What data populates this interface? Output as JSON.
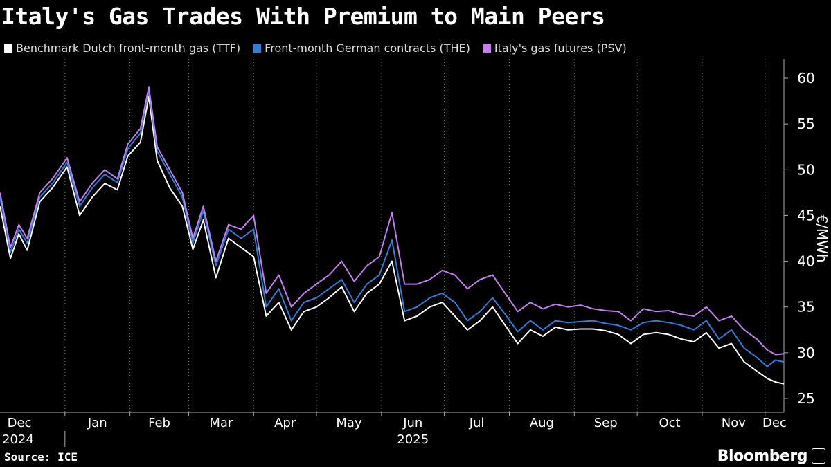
{
  "header": {
    "title": "Italy's Gas Trades With Premium to Main Peers"
  },
  "footer": {
    "source": "Source: ICE",
    "brand": "Bloomberg"
  },
  "chart_data": {
    "type": "line",
    "title": "Italy's Gas Trades With Premium to Main Peers",
    "ylabel": "€/MWh",
    "ylim": [
      25,
      60
    ],
    "yticks": [
      "25",
      "30",
      "35",
      "40",
      "45",
      "50",
      "55",
      "60"
    ],
    "xlim": [
      "2024-12-01",
      "2025-12-10"
    ],
    "month_ticks": [
      {
        "date": "2024-12-01",
        "label": "Dec",
        "year": "2024"
      },
      {
        "date": "2025-01-01",
        "label": "Jan"
      },
      {
        "date": "2025-02-01",
        "label": "Feb"
      },
      {
        "date": "2025-03-01",
        "label": "Mar"
      },
      {
        "date": "2025-04-01",
        "label": "Apr"
      },
      {
        "date": "2025-05-01",
        "label": "May"
      },
      {
        "date": "2025-06-01",
        "label": "Jun",
        "year": "2025"
      },
      {
        "date": "2025-07-01",
        "label": "Jul"
      },
      {
        "date": "2025-08-01",
        "label": "Aug"
      },
      {
        "date": "2025-09-01",
        "label": "Sep"
      },
      {
        "date": "2025-10-01",
        "label": "Oct"
      },
      {
        "date": "2025-11-01",
        "label": "Nov"
      },
      {
        "date": "2025-12-01",
        "label": "Dec"
      }
    ],
    "legend_position": "top-left",
    "grid": "vertical dotted",
    "x": [
      "2024-12-01",
      "2024-12-06",
      "2024-12-10",
      "2024-12-14",
      "2024-12-20",
      "2024-12-26",
      "2025-01-02",
      "2025-01-08",
      "2025-01-14",
      "2025-01-20",
      "2025-01-26",
      "2025-01-31",
      "2025-02-06",
      "2025-02-10",
      "2025-02-14",
      "2025-02-20",
      "2025-02-26",
      "2025-03-03",
      "2025-03-08",
      "2025-03-14",
      "2025-03-20",
      "2025-03-26",
      "2025-04-01",
      "2025-04-07",
      "2025-04-13",
      "2025-04-19",
      "2025-04-25",
      "2025-05-01",
      "2025-05-07",
      "2025-05-13",
      "2025-05-19",
      "2025-05-25",
      "2025-05-31",
      "2025-06-06",
      "2025-06-12",
      "2025-06-18",
      "2025-06-24",
      "2025-06-30",
      "2025-07-06",
      "2025-07-12",
      "2025-07-18",
      "2025-07-24",
      "2025-07-30",
      "2025-08-05",
      "2025-08-11",
      "2025-08-17",
      "2025-08-23",
      "2025-08-29",
      "2025-09-04",
      "2025-09-10",
      "2025-09-16",
      "2025-09-22",
      "2025-09-28",
      "2025-10-04",
      "2025-10-10",
      "2025-10-16",
      "2025-10-22",
      "2025-10-28",
      "2025-11-03",
      "2025-11-09",
      "2025-11-15",
      "2025-11-21",
      "2025-11-27",
      "2025-12-02",
      "2025-12-06",
      "2025-12-10"
    ],
    "series": [
      {
        "name": "Benchmark Dutch front-month gas (TTF)",
        "color": "#ffffff",
        "values": [
          46.0,
          40.3,
          43.0,
          41.2,
          46.5,
          48.0,
          50.3,
          45.0,
          47.0,
          48.5,
          47.8,
          51.5,
          53.0,
          58.0,
          51.0,
          48.0,
          46.0,
          41.3,
          44.5,
          38.2,
          42.5,
          41.5,
          40.5,
          34.0,
          35.5,
          32.5,
          34.5,
          35.0,
          36.0,
          37.2,
          34.5,
          36.5,
          37.5,
          40.0,
          33.5,
          34.0,
          35.0,
          35.5,
          34.0,
          32.5,
          33.5,
          35.0,
          33.0,
          31.0,
          32.5,
          31.8,
          32.8,
          32.5,
          32.6,
          32.6,
          32.4,
          32.0,
          31.0,
          32.0,
          32.2,
          32.0,
          31.5,
          31.2,
          32.2,
          30.5,
          31.0,
          29.0,
          28.0,
          27.2,
          26.8,
          26.6
        ]
      },
      {
        "name": "Front-month German contracts (THE)",
        "color": "#2f7ed8",
        "values": [
          47.0,
          41.0,
          43.5,
          42.0,
          47.0,
          48.5,
          50.8,
          46.0,
          48.0,
          49.5,
          48.6,
          52.3,
          54.0,
          58.7,
          52.0,
          49.5,
          47.0,
          42.0,
          45.5,
          39.5,
          43.5,
          42.5,
          43.5,
          35.0,
          37.0,
          33.5,
          35.5,
          36.0,
          37.0,
          38.0,
          35.5,
          37.5,
          38.5,
          42.3,
          34.5,
          35.0,
          36.0,
          36.5,
          35.5,
          33.5,
          34.5,
          36.0,
          34.2,
          32.3,
          33.5,
          32.5,
          33.5,
          33.3,
          33.4,
          33.5,
          33.2,
          33.0,
          32.5,
          33.3,
          33.5,
          33.3,
          33.0,
          32.5,
          33.5,
          31.5,
          32.5,
          30.5,
          29.5,
          28.5,
          29.2,
          29.0
        ]
      },
      {
        "name": "Italy's gas futures (PSV)",
        "color": "#c37ff0",
        "values": [
          47.5,
          41.5,
          44.0,
          42.5,
          47.5,
          49.0,
          51.3,
          46.5,
          48.5,
          50.0,
          49.0,
          52.8,
          54.5,
          59.0,
          52.5,
          50.0,
          47.5,
          42.5,
          46.0,
          40.0,
          44.0,
          43.5,
          45.0,
          36.5,
          38.5,
          35.0,
          36.5,
          37.5,
          38.5,
          40.0,
          37.8,
          39.5,
          40.5,
          45.3,
          37.5,
          37.5,
          38.0,
          39.0,
          38.5,
          37.0,
          38.0,
          38.5,
          36.5,
          34.5,
          35.5,
          34.8,
          35.3,
          35.0,
          35.2,
          34.8,
          34.6,
          34.5,
          33.5,
          34.8,
          34.5,
          34.6,
          34.2,
          34.0,
          35.0,
          33.5,
          34.0,
          32.5,
          31.5,
          30.3,
          29.8,
          29.9
        ]
      }
    ]
  }
}
